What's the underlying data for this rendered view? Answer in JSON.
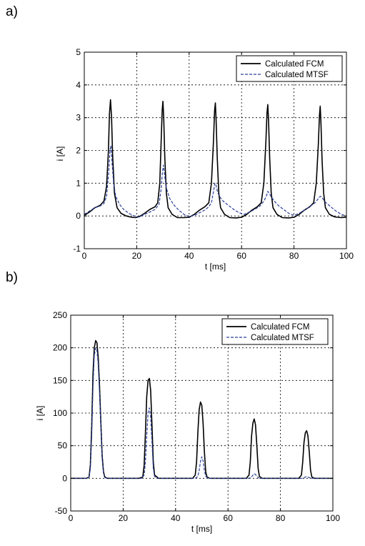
{
  "panels": {
    "a": {
      "label": "a)"
    },
    "b": {
      "label": "b)"
    }
  },
  "colors": {
    "fcm": "#000000",
    "mtsf": "#2a3f9a",
    "grid": "#000000"
  },
  "chart_data": [
    {
      "type": "line",
      "xlabel": "t [ms]",
      "ylabel": "i [A]",
      "xlim": [
        0,
        100
      ],
      "ylim": [
        -1,
        5
      ],
      "xticks": [
        0,
        20,
        40,
        60,
        80,
        100
      ],
      "yticks": [
        -1,
        0,
        1,
        2,
        3,
        4,
        5
      ],
      "grid": true,
      "legend_position": "top-right",
      "series": [
        {
          "name": "Calculated FCM",
          "style": "solid",
          "x": [
            0,
            2,
            4,
            6,
            7.5,
            8.5,
            9.2,
            9.6,
            10,
            10.4,
            10.8,
            11.5,
            12.5,
            14,
            16,
            18,
            19.5,
            21,
            23,
            25,
            27,
            28,
            28.8,
            29.3,
            29.7,
            30,
            30.3,
            30.7,
            31.3,
            32,
            33.5,
            35.5,
            38,
            40,
            42,
            44,
            46,
            47.5,
            48.5,
            49.3,
            49.7,
            50,
            50.3,
            50.7,
            51.3,
            52,
            53.5,
            55.5,
            58,
            60,
            62,
            64,
            66,
            67.5,
            68.5,
            69.3,
            69.7,
            70,
            70.3,
            70.7,
            71.3,
            72,
            73.5,
            75.5,
            78,
            80,
            82,
            84,
            86,
            87.5,
            88.5,
            89.3,
            89.7,
            90,
            90.3,
            90.7,
            91.3,
            92,
            93.5,
            95.5,
            98,
            100
          ],
          "y": [
            0.02,
            0.12,
            0.25,
            0.32,
            0.45,
            0.9,
            2.0,
            3.1,
            3.55,
            3.0,
            1.9,
            0.7,
            0.25,
            0.08,
            0.0,
            -0.04,
            -0.05,
            -0.02,
            0.08,
            0.2,
            0.28,
            0.4,
            1.0,
            2.2,
            3.2,
            3.5,
            3.0,
            1.8,
            0.7,
            0.25,
            0.05,
            -0.05,
            -0.05,
            -0.04,
            0.05,
            0.18,
            0.28,
            0.4,
            1.0,
            2.3,
            3.2,
            3.45,
            2.9,
            1.8,
            0.7,
            0.25,
            0.05,
            -0.05,
            -0.06,
            -0.04,
            0.05,
            0.18,
            0.28,
            0.4,
            1.0,
            2.3,
            3.15,
            3.4,
            2.9,
            1.8,
            0.7,
            0.25,
            0.05,
            -0.05,
            -0.06,
            -0.04,
            0.05,
            0.18,
            0.28,
            0.4,
            1.0,
            2.2,
            3.05,
            3.35,
            2.8,
            1.7,
            0.7,
            0.25,
            0.05,
            -0.03,
            -0.05,
            -0.04
          ]
        },
        {
          "name": "Calculated MTSF",
          "style": "dashed",
          "x": [
            0,
            2,
            4,
            6,
            7.5,
            8.5,
            9.3,
            9.8,
            10.2,
            10.6,
            11.2,
            12,
            13.5,
            15,
            17,
            19,
            21,
            23,
            25,
            27,
            28.5,
            29.3,
            29.8,
            30.2,
            30.7,
            31.3,
            32.5,
            34,
            36,
            38,
            40,
            42,
            44,
            46,
            47.5,
            48.5,
            49.3,
            49.8,
            50.2,
            50.8,
            51.5,
            53,
            55,
            57,
            59,
            61,
            63,
            65,
            67,
            68.5,
            69.5,
            70,
            70.5,
            71.3,
            72.5,
            74,
            76,
            78,
            80,
            82,
            84,
            86,
            88,
            89,
            89.7,
            90.2,
            90.8,
            92,
            94,
            96,
            98,
            100
          ],
          "y": [
            0.05,
            0.15,
            0.25,
            0.3,
            0.38,
            0.6,
            1.3,
            2.0,
            2.15,
            1.6,
            1.0,
            0.6,
            0.35,
            0.2,
            0.08,
            0.0,
            -0.03,
            0.05,
            0.12,
            0.2,
            0.35,
            0.8,
            1.35,
            1.55,
            1.2,
            0.85,
            0.55,
            0.35,
            0.18,
            0.05,
            -0.02,
            0.02,
            0.1,
            0.18,
            0.28,
            0.4,
            0.75,
            1.0,
            0.95,
            0.75,
            0.6,
            0.45,
            0.32,
            0.2,
            0.1,
            0.05,
            0.12,
            0.2,
            0.3,
            0.45,
            0.62,
            0.75,
            0.7,
            0.58,
            0.45,
            0.32,
            0.2,
            0.08,
            0.02,
            0.08,
            0.18,
            0.28,
            0.4,
            0.5,
            0.58,
            0.6,
            0.55,
            0.42,
            0.28,
            0.15,
            0.05,
            0.0
          ]
        }
      ]
    },
    {
      "type": "line",
      "xlabel": "t [ms]",
      "ylabel": "i [A]",
      "xlim": [
        0,
        100
      ],
      "ylim": [
        -50,
        250
      ],
      "xticks": [
        0,
        20,
        40,
        60,
        80,
        100
      ],
      "yticks": [
        -50,
        0,
        50,
        100,
        150,
        200,
        250
      ],
      "grid": true,
      "legend_position": "top-right",
      "series": [
        {
          "name": "Calculated FCM",
          "style": "solid",
          "x": [
            0,
            6,
            7,
            7.5,
            8,
            8.5,
            9,
            9.5,
            10,
            10.5,
            11,
            11.5,
            12,
            12.5,
            13,
            14,
            26,
            27.5,
            28,
            28.5,
            29,
            29.5,
            30,
            30.5,
            31,
            31.5,
            32,
            33.5,
            46.5,
            47.5,
            48,
            48.5,
            49,
            49.5,
            50,
            50.5,
            51,
            51.5,
            52,
            53,
            67,
            68,
            68.5,
            69,
            69.5,
            70,
            70.5,
            71,
            71.5,
            72,
            73,
            87,
            88,
            88.5,
            89,
            89.5,
            90,
            90.5,
            91,
            91.5,
            92,
            93,
            100
          ],
          "y": [
            0,
            0,
            2,
            20,
            80,
            160,
            200,
            211,
            208,
            185,
            140,
            85,
            35,
            10,
            2,
            0,
            0,
            2,
            20,
            70,
            125,
            150,
            153,
            135,
            80,
            25,
            5,
            0,
            0,
            5,
            25,
            70,
            105,
            117,
            112,
            85,
            40,
            10,
            2,
            0,
            0,
            5,
            25,
            65,
            85,
            91,
            82,
            50,
            15,
            3,
            0,
            0,
            5,
            25,
            55,
            70,
            73,
            65,
            40,
            12,
            2,
            0,
            0
          ]
        },
        {
          "name": "Calculated MTSF",
          "style": "dashed",
          "x": [
            0,
            6,
            7,
            7.5,
            8,
            8.5,
            9,
            9.5,
            10,
            10.5,
            11,
            11.5,
            12,
            12.5,
            13,
            14,
            27,
            28,
            28.5,
            29,
            29.5,
            30,
            30.5,
            31,
            31.5,
            32,
            33,
            47.5,
            48.5,
            49,
            49.5,
            50,
            50.5,
            51,
            51.5,
            52.5,
            68,
            69,
            69.5,
            70,
            70.5,
            71,
            72,
            88,
            89,
            89.5,
            90,
            90.5,
            91,
            92,
            100
          ],
          "y": [
            0,
            0,
            2,
            15,
            65,
            140,
            188,
            200,
            196,
            175,
            130,
            80,
            30,
            8,
            1,
            0,
            0,
            5,
            25,
            65,
            100,
            108,
            95,
            55,
            15,
            3,
            0,
            0,
            3,
            12,
            26,
            33,
            27,
            12,
            3,
            0,
            0,
            2,
            5,
            7,
            6,
            3,
            0,
            0,
            1,
            2,
            3,
            2,
            1,
            0,
            0
          ]
        }
      ]
    }
  ]
}
